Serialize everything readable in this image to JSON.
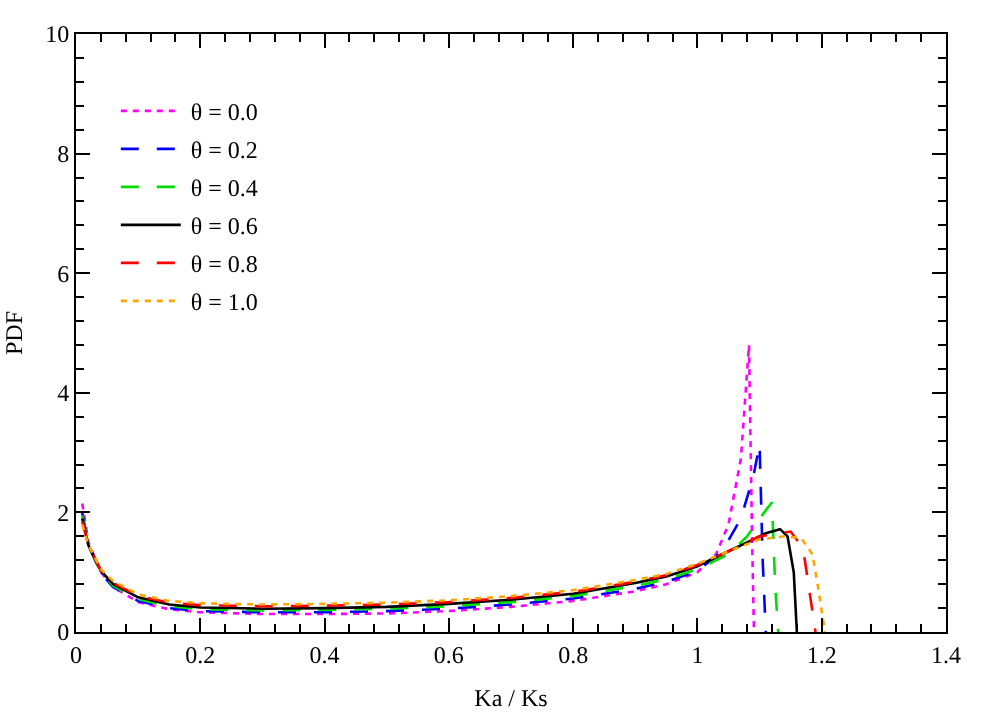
{
  "chart_data": {
    "type": "line",
    "xlabel": "Ka / Ks",
    "ylabel": "PDF",
    "xlim": [
      0,
      1.4
    ],
    "xticks": [
      0,
      0.2,
      0.4,
      0.6,
      0.8,
      1,
      1.2,
      1.4
    ],
    "ylim": [
      0,
      10
    ],
    "yticks": [
      0,
      2,
      4,
      6,
      8,
      10
    ],
    "grid": false,
    "legend": "top left",
    "marker": "none",
    "series": [
      {
        "name": "θ = 0.0",
        "color": "#ff00ff",
        "line_style": "dotted",
        "x": [
          0.01,
          0.02,
          0.04,
          0.06,
          0.1,
          0.15,
          0.2,
          0.3,
          0.4,
          0.5,
          0.6,
          0.7,
          0.8,
          0.9,
          0.95,
          1.0,
          1.03,
          1.05,
          1.07,
          1.083,
          1.088,
          1.091
        ],
        "values": [
          2.15,
          1.5,
          1.0,
          0.75,
          0.5,
          0.38,
          0.33,
          0.3,
          0.3,
          0.31,
          0.35,
          0.42,
          0.52,
          0.68,
          0.8,
          1.0,
          1.3,
          1.8,
          2.9,
          4.8,
          1.5,
          0
        ]
      },
      {
        "name": "θ = 0.2",
        "color": "#0000ff",
        "line_style": "dashed",
        "x": [
          0.01,
          0.02,
          0.04,
          0.06,
          0.1,
          0.15,
          0.2,
          0.3,
          0.4,
          0.5,
          0.6,
          0.7,
          0.8,
          0.9,
          0.95,
          1.0,
          1.04,
          1.07,
          1.09,
          1.1,
          1.105,
          1.11
        ],
        "values": [
          2.0,
          1.45,
          0.98,
          0.75,
          0.52,
          0.4,
          0.35,
          0.33,
          0.33,
          0.35,
          0.39,
          0.46,
          0.56,
          0.72,
          0.84,
          1.02,
          1.35,
          1.9,
          2.6,
          3.14,
          1.2,
          0
        ]
      },
      {
        "name": "θ = 0.4",
        "color": "#00dd00",
        "line_style": "dashed",
        "x": [
          0.01,
          0.02,
          0.04,
          0.06,
          0.1,
          0.15,
          0.2,
          0.3,
          0.4,
          0.5,
          0.6,
          0.7,
          0.8,
          0.9,
          0.95,
          1.0,
          1.05,
          1.08,
          1.1,
          1.12,
          1.125,
          1.13
        ],
        "values": [
          1.95,
          1.45,
          1.0,
          0.77,
          0.55,
          0.43,
          0.38,
          0.36,
          0.37,
          0.39,
          0.43,
          0.5,
          0.6,
          0.77,
          0.88,
          1.05,
          1.3,
          1.6,
          1.9,
          2.17,
          0.8,
          0
        ]
      },
      {
        "name": "θ = 0.6",
        "color": "#000000",
        "line_style": "solid",
        "x": [
          0.01,
          0.02,
          0.04,
          0.06,
          0.1,
          0.15,
          0.2,
          0.3,
          0.4,
          0.5,
          0.6,
          0.7,
          0.8,
          0.9,
          0.95,
          1.0,
          1.04,
          1.08,
          1.11,
          1.133,
          1.145,
          1.155,
          1.16
        ],
        "values": [
          1.9,
          1.45,
          1.02,
          0.8,
          0.58,
          0.46,
          0.41,
          0.39,
          0.4,
          0.42,
          0.47,
          0.54,
          0.64,
          0.82,
          0.93,
          1.1,
          1.3,
          1.5,
          1.65,
          1.72,
          1.6,
          1.0,
          0
        ]
      },
      {
        "name": "θ = 0.8",
        "color": "#ff0000",
        "line_style": "dashed",
        "x": [
          0.01,
          0.02,
          0.04,
          0.06,
          0.1,
          0.15,
          0.2,
          0.3,
          0.4,
          0.5,
          0.6,
          0.7,
          0.8,
          0.9,
          0.95,
          1.0,
          1.05,
          1.1,
          1.15,
          1.17,
          1.18,
          1.19
        ],
        "values": [
          1.85,
          1.45,
          1.03,
          0.82,
          0.6,
          0.49,
          0.45,
          0.43,
          0.44,
          0.46,
          0.5,
          0.57,
          0.67,
          0.84,
          0.95,
          1.12,
          1.35,
          1.6,
          1.68,
          1.4,
          0.7,
          0
        ]
      },
      {
        "name": "θ = 1.0",
        "color": "#ffa500",
        "line_style": "dotted",
        "x": [
          0.01,
          0.02,
          0.04,
          0.06,
          0.1,
          0.15,
          0.2,
          0.3,
          0.4,
          0.5,
          0.6,
          0.7,
          0.8,
          0.9,
          0.95,
          1.0,
          1.05,
          1.1,
          1.14,
          1.167,
          1.185,
          1.195,
          1.205
        ],
        "values": [
          1.8,
          1.45,
          1.05,
          0.85,
          0.63,
          0.52,
          0.48,
          0.46,
          0.47,
          0.49,
          0.53,
          0.6,
          0.7,
          0.87,
          0.97,
          1.14,
          1.35,
          1.55,
          1.6,
          1.57,
          1.3,
          0.7,
          0
        ]
      }
    ]
  }
}
